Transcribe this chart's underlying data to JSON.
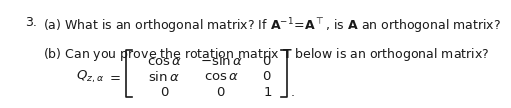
{
  "prefix": "3.",
  "line1": "(a) What is an orthogonal matrix? If $\\mathbf{A}^{-1}\\!=\\!\\mathbf{A}^{\\top}$, is $\\mathbf{A}$ an orthogonal matrix?",
  "line2": "(b) Can you prove the rotation matrix $\\mathbf{T}$ below is an orthogonal matrix?",
  "matrix_label": "$Q_{z,\\alpha}$",
  "matrix_rows": [
    [
      "\\cos\\alpha",
      "-\\sin\\alpha",
      "0"
    ],
    [
      "\\sin\\alpha",
      "\\cos\\alpha",
      "0"
    ],
    [
      "0",
      "0",
      "1"
    ]
  ],
  "bg_color": "#ffffff",
  "text_color": "#1a1a1a",
  "fontsize_main": 9.0,
  "fontsize_matrix": 9.5
}
